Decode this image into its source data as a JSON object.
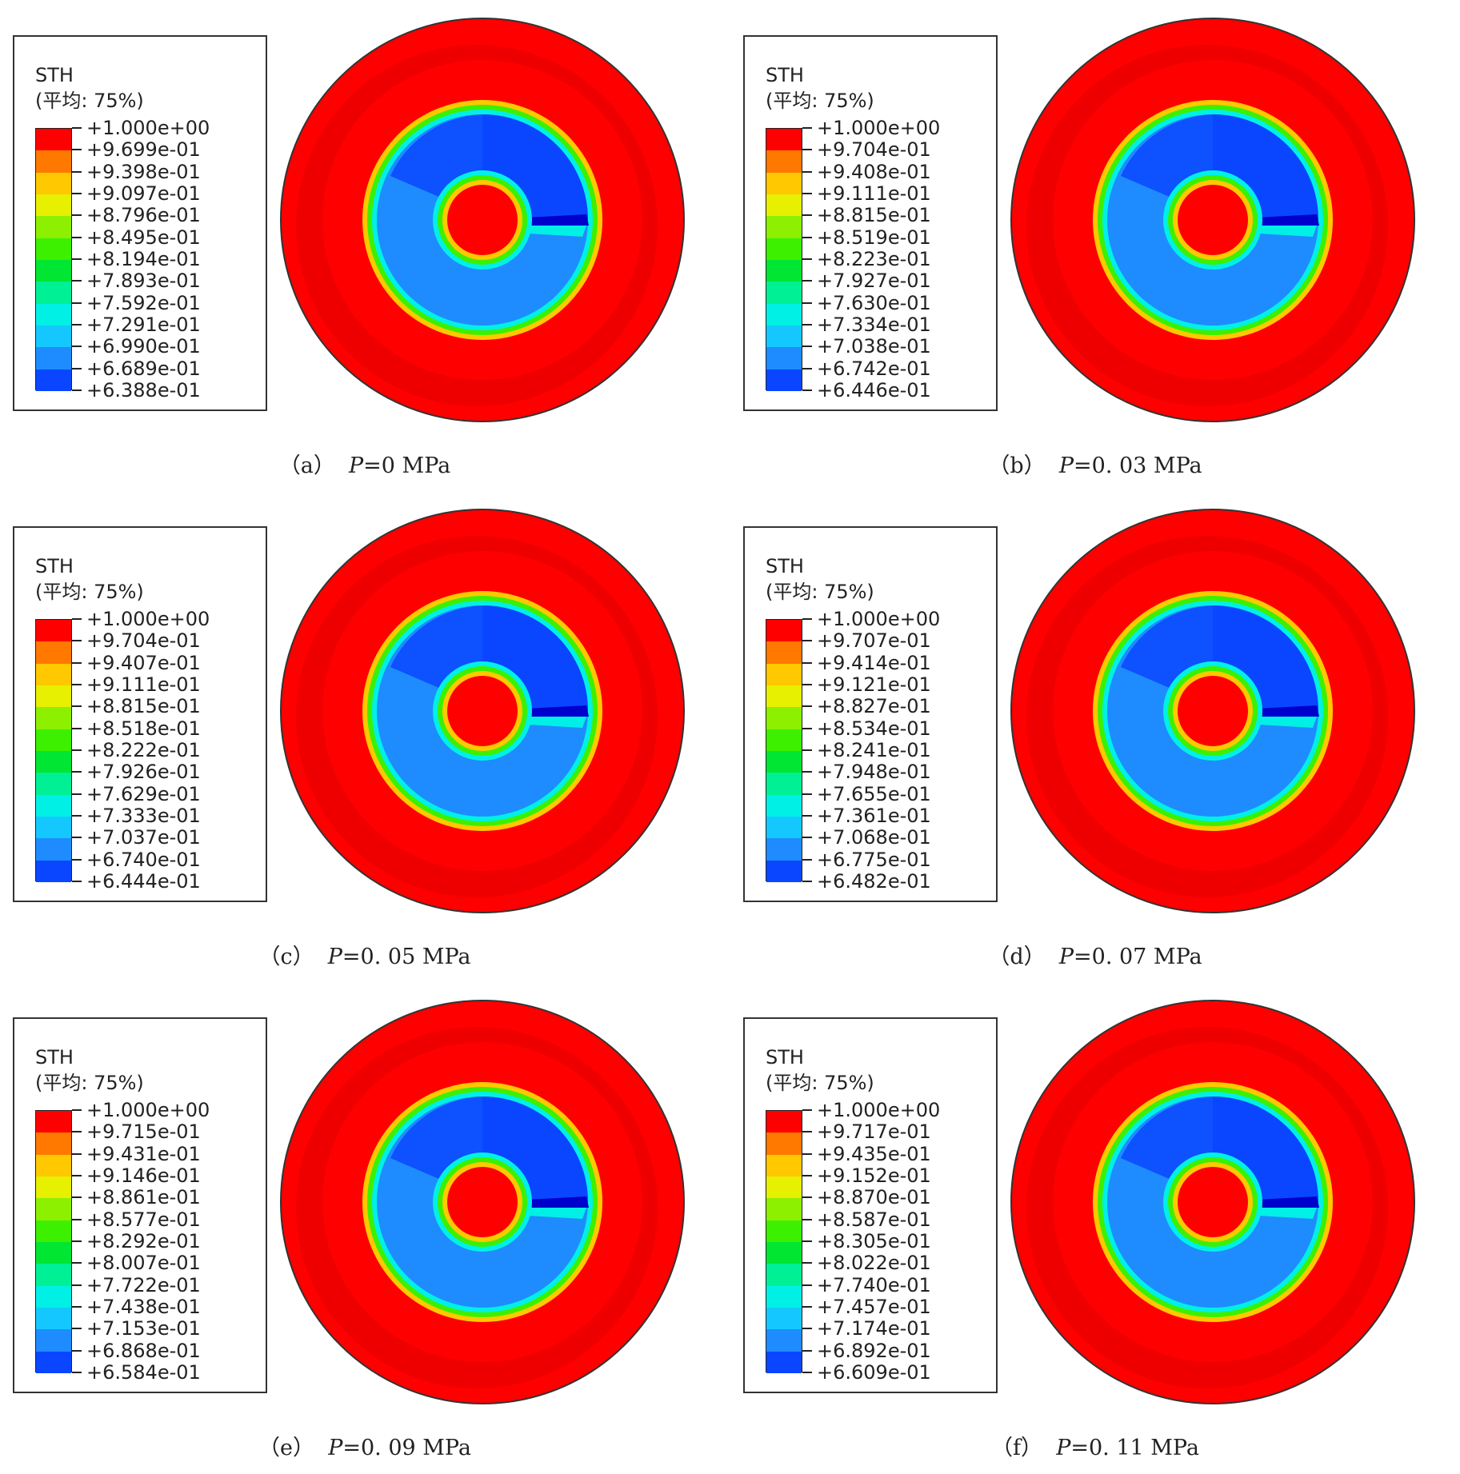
{
  "band_colors": [
    "#0000ff",
    "#0a46ff",
    "#1e8cff",
    "#14c8ff",
    "#00f0e6",
    "#00f096",
    "#00e632",
    "#3cf000",
    "#8cf000",
    "#e6f000",
    "#ffc800",
    "#ff7800",
    "#ff0000"
  ],
  "contour_colors": {
    "outer": "#ff0000",
    "shadow": "#e60000",
    "deep_blue": "#0a46ff",
    "light_blue": "#1e8cff",
    "green": "#00e632",
    "cyan": "#00f0e6",
    "yellow": "#ffc800",
    "center": "#ff0000"
  },
  "panels": [
    {
      "variable": "STH",
      "average": "(平均: 75%)",
      "letter": "（a）",
      "p_symbol": "P",
      "p_value": "=0 MPa",
      "levels": [
        "+1.000e+00",
        "+9.699e-01",
        "+9.398e-01",
        "+9.097e-01",
        "+8.796e-01",
        "+8.495e-01",
        "+8.194e-01",
        "+7.893e-01",
        "+7.592e-01",
        "+7.291e-01",
        "+6.990e-01",
        "+6.689e-01",
        "+6.388e-01"
      ]
    },
    {
      "variable": "STH",
      "average": "(平均: 75%)",
      "letter": "（b）",
      "p_symbol": "P",
      "p_value": "=0. 03 MPa",
      "levels": [
        "+1.000e+00",
        "+9.704e-01",
        "+9.408e-01",
        "+9.111e-01",
        "+8.815e-01",
        "+8.519e-01",
        "+8.223e-01",
        "+7.927e-01",
        "+7.630e-01",
        "+7.334e-01",
        "+7.038e-01",
        "+6.742e-01",
        "+6.446e-01"
      ]
    },
    {
      "variable": "STH",
      "average": "(平均: 75%)",
      "letter": "（c）",
      "p_symbol": "P",
      "p_value": "=0. 05 MPa",
      "levels": [
        "+1.000e+00",
        "+9.704e-01",
        "+9.407e-01",
        "+9.111e-01",
        "+8.815e-01",
        "+8.518e-01",
        "+8.222e-01",
        "+7.926e-01",
        "+7.629e-01",
        "+7.333e-01",
        "+7.037e-01",
        "+6.740e-01",
        "+6.444e-01"
      ]
    },
    {
      "variable": "STH",
      "average": "(平均: 75%)",
      "letter": "（d）",
      "p_symbol": "P",
      "p_value": "=0. 07 MPa",
      "levels": [
        "+1.000e+00",
        "+9.707e-01",
        "+9.414e-01",
        "+9.121e-01",
        "+8.827e-01",
        "+8.534e-01",
        "+8.241e-01",
        "+7.948e-01",
        "+7.655e-01",
        "+7.361e-01",
        "+7.068e-01",
        "+6.775e-01",
        "+6.482e-01"
      ]
    },
    {
      "variable": "STH",
      "average": "(平均: 75%)",
      "letter": "（e）",
      "p_symbol": "P",
      "p_value": "=0. 09 MPa",
      "levels": [
        "+1.000e+00",
        "+9.715e-01",
        "+9.431e-01",
        "+9.146e-01",
        "+8.861e-01",
        "+8.577e-01",
        "+8.292e-01",
        "+8.007e-01",
        "+7.722e-01",
        "+7.438e-01",
        "+7.153e-01",
        "+6.868e-01",
        "+6.584e-01"
      ]
    },
    {
      "variable": "STH",
      "average": "(平均: 75%)",
      "letter": "（f）",
      "p_symbol": "P",
      "p_value": "=0. 11 MPa",
      "levels": [
        "+1.000e+00",
        "+9.717e-01",
        "+9.435e-01",
        "+9.152e-01",
        "+8.870e-01",
        "+8.587e-01",
        "+8.305e-01",
        "+8.022e-01",
        "+7.740e-01",
        "+7.457e-01",
        "+7.174e-01",
        "+6.892e-01",
        "+6.609e-01"
      ]
    }
  ]
}
